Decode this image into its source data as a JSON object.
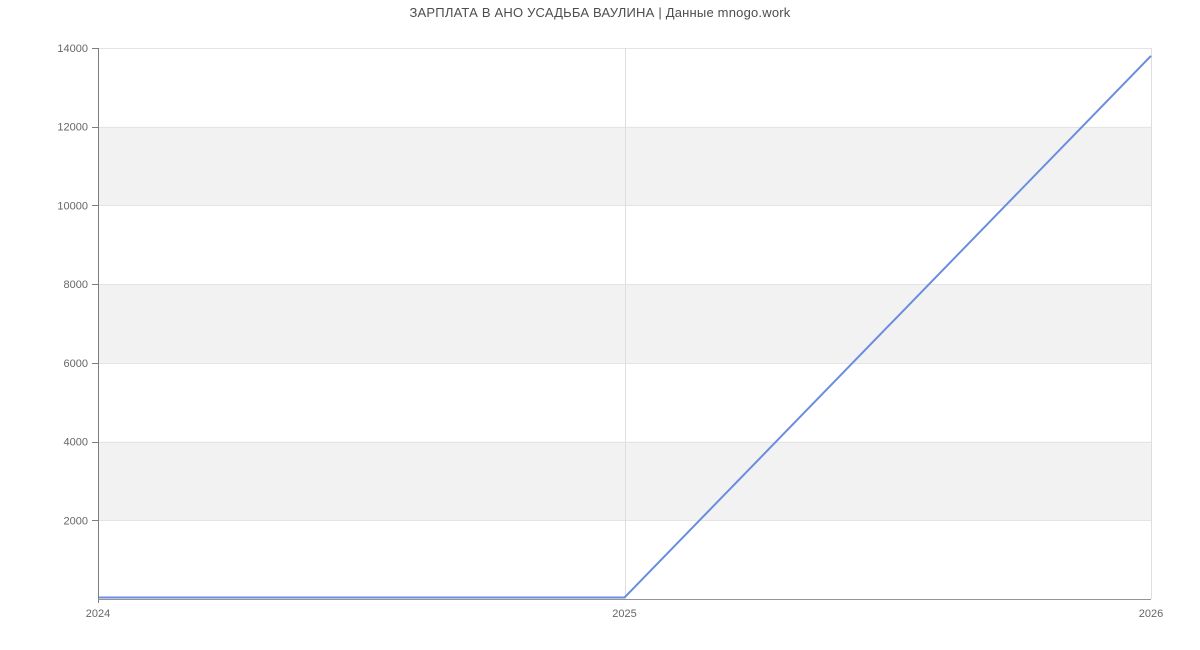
{
  "page": {
    "title": "ЗАРПЛАТА В АНО УСАДЬБА ВАУЛИНА | Данные mnogo.work"
  },
  "colors": {
    "background": "#ffffff",
    "band": "#f2f2f2",
    "grid": "#e4e4e4",
    "vgrid": "#dedede",
    "y_axis": "#7d7d7d",
    "x_axis": "#949494",
    "tick_label": "#666666",
    "title": "#4d4d4d",
    "line": "#6b8de0"
  },
  "chart_data": {
    "type": "line",
    "title": "ЗАРПЛАТА В АНО УСАДЬБА ВАУЛИНА | Данные mnogo.work",
    "x": [
      "2024",
      "2025",
      "2026"
    ],
    "series": [
      {
        "name": "salary",
        "values": [
          0,
          0,
          13800
        ]
      }
    ],
    "xlabel": "",
    "ylabel": "",
    "ylim": [
      0,
      14000
    ],
    "yticks": [
      2000,
      4000,
      6000,
      8000,
      10000,
      12000,
      14000
    ],
    "ytick_labels": [
      "2000",
      "4000",
      "6000",
      "8000",
      "10000",
      "12000",
      "14000"
    ],
    "grid": "horizontal-bands-alternating",
    "gray_bands": [
      [
        10000,
        12000
      ],
      [
        6000,
        8000
      ],
      [
        2000,
        4000
      ]
    ],
    "legend": "none"
  }
}
